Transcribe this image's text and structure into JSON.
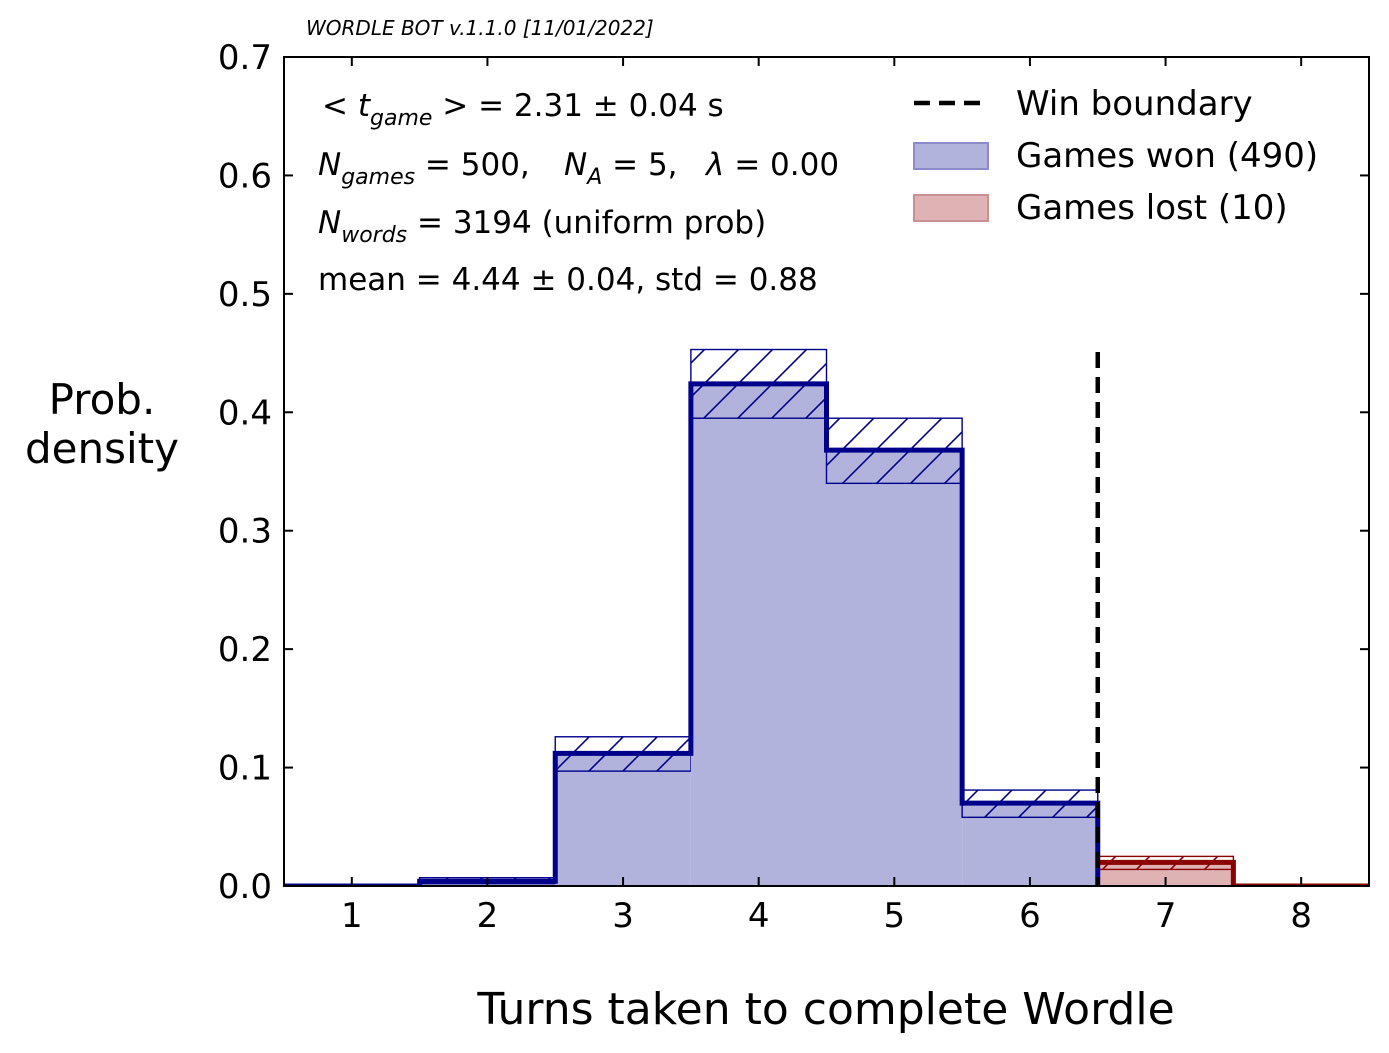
{
  "header": {
    "version_text": "WORDLE BOT v.1.1.0  [11/01/2022]"
  },
  "chart_data": {
    "type": "histogram",
    "xlabel": "Turns taken to complete Wordle",
    "ylabel_lines": [
      "Prob.",
      "density"
    ],
    "xlim": [
      0.5,
      8.5
    ],
    "ylim": [
      0,
      0.7
    ],
    "x_ticks": [
      "1",
      "2",
      "3",
      "4",
      "5",
      "6",
      "7",
      "8"
    ],
    "y_ticks": [
      "0.0",
      "0.1",
      "0.2",
      "0.3",
      "0.4",
      "0.5",
      "0.6",
      "0.7"
    ],
    "win_boundary_x": 6.5,
    "series": [
      {
        "name": "Games won (490)",
        "color": "#00008b",
        "fill": "#b2b3dc",
        "bins": [
          {
            "x": 1,
            "value": 0.0,
            "lower": 0.0,
            "upper": 0.0
          },
          {
            "x": 2,
            "value": 0.004,
            "lower": 0.002,
            "upper": 0.007
          },
          {
            "x": 3,
            "value": 0.112,
            "lower": 0.097,
            "upper": 0.126
          },
          {
            "x": 4,
            "value": 0.424,
            "lower": 0.395,
            "upper": 0.453
          },
          {
            "x": 5,
            "value": 0.368,
            "lower": 0.34,
            "upper": 0.395
          },
          {
            "x": 6,
            "value": 0.07,
            "lower": 0.058,
            "upper": 0.081
          }
        ]
      },
      {
        "name": "Games lost (10)",
        "color": "#8b0000",
        "fill": "#dfb3b3",
        "bins": [
          {
            "x": 7,
            "value": 0.02,
            "lower": 0.014,
            "upper": 0.025
          },
          {
            "x": 8,
            "value": 0.0,
            "lower": 0.0,
            "upper": 0.0
          }
        ]
      }
    ],
    "legend": {
      "position": "upper-right",
      "entries": [
        "Win boundary",
        "Games won (490)",
        "Games lost (10)"
      ]
    },
    "annotations": {
      "line1": {
        "prefix": "< ",
        "var": "t",
        "sub": "game",
        "rest": " > = 2.31 ± 0.04 s"
      },
      "line2": {
        "ngames_var": "N",
        "ngames_sub": "games",
        "ngames_val": " = 500,",
        "na_var": "N",
        "na_sub": "A",
        "na_val": " = 5,",
        "lambda_var": "λ",
        "lambda_val": " = 0.00"
      },
      "line3": {
        "var": "N",
        "sub": "words",
        "rest": " = 3194 (uniform prob)"
      },
      "line4": {
        "text": "mean = 4.44 ± 0.04, std = 0.88"
      }
    }
  }
}
